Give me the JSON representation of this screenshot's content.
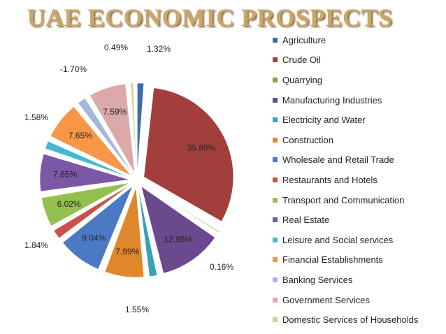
{
  "title": "UAE ECONOMIC PROSPECTS",
  "chart_data": {
    "type": "pie",
    "categories": [
      "Agriculture",
      "Crude Oil",
      "Quarrying",
      "Manufacturing Industries",
      "Electricity and Water",
      "Construction",
      "Wholesale and Retail Trade",
      "Restaurants and Hotels",
      "Transport and Communication",
      "Real Estate",
      "Leisure and Social services",
      "Financial Establishments",
      "Banking Services",
      "Government Services",
      "Domestic Services of Households"
    ],
    "values": [
      1.32,
      35.88,
      0.16,
      12.95,
      1.55,
      7.99,
      9.04,
      1.84,
      6.02,
      7.65,
      1.58,
      7.65,
      -1.7,
      7.59,
      0.49
    ],
    "labels": [
      "1.32%",
      "35.88%",
      "0.16%",
      "12.95%",
      "1.55%",
      "7.99%",
      "9.04%",
      "1.84%",
      "6.02%",
      "7.65%",
      "1.58%",
      "7.65%",
      "-1.70%",
      "7.59%",
      "0.49%"
    ],
    "colors": [
      "#3e6cab",
      "#a23f3c",
      "#87a544",
      "#6a4a8c",
      "#38a1ba",
      "#e0872c",
      "#4a7ac4",
      "#c9504d",
      "#94c04f",
      "#7b57a6",
      "#44b7d1",
      "#f79646",
      "#a6b8d8",
      "#dba9a7",
      "#c3d69b"
    ],
    "legend_position": "right"
  }
}
